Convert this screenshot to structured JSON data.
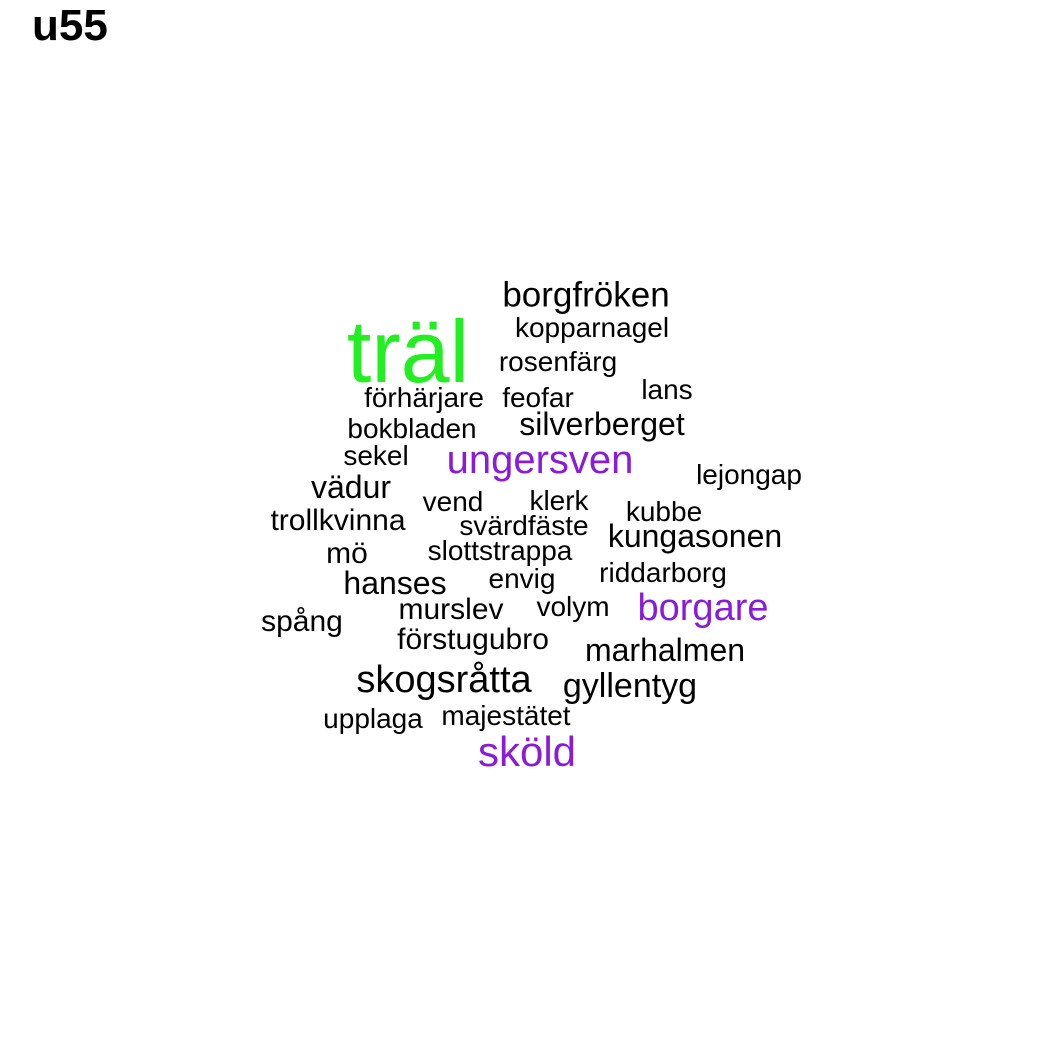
{
  "title": "u55",
  "colors": {
    "default": "#000000",
    "accent_green": "#22ee22",
    "accent_purple": "#8a1bd8"
  },
  "words": [
    {
      "text": "träl",
      "color": "accent_green"
    },
    {
      "text": "borgfröken",
      "color": "default"
    },
    {
      "text": "kopparnagel",
      "color": "default"
    },
    {
      "text": "rosenfärg",
      "color": "default"
    },
    {
      "text": "lans",
      "color": "default"
    },
    {
      "text": "förhärjare",
      "color": "default"
    },
    {
      "text": "feofar",
      "color": "default"
    },
    {
      "text": "silverberget",
      "color": "default"
    },
    {
      "text": "bokbladen",
      "color": "default"
    },
    {
      "text": "ungersven",
      "color": "accent_purple"
    },
    {
      "text": "sekel",
      "color": "default"
    },
    {
      "text": "lejongap",
      "color": "default"
    },
    {
      "text": "vädur",
      "color": "default"
    },
    {
      "text": "vend",
      "color": "default"
    },
    {
      "text": "klerk",
      "color": "default"
    },
    {
      "text": "kubbe",
      "color": "default"
    },
    {
      "text": "trollkvinna",
      "color": "default"
    },
    {
      "text": "svärdfäste",
      "color": "default"
    },
    {
      "text": "kungasonen",
      "color": "default"
    },
    {
      "text": "mö",
      "color": "default"
    },
    {
      "text": "slottstrappa",
      "color": "default"
    },
    {
      "text": "riddarborg",
      "color": "default"
    },
    {
      "text": "hanses",
      "color": "default"
    },
    {
      "text": "envig",
      "color": "default"
    },
    {
      "text": "borgare",
      "color": "accent_purple"
    },
    {
      "text": "murslev",
      "color": "default"
    },
    {
      "text": "volym",
      "color": "default"
    },
    {
      "text": "spång",
      "color": "default"
    },
    {
      "text": "förstugubro",
      "color": "default"
    },
    {
      "text": "marhalmen",
      "color": "default"
    },
    {
      "text": "skogsråtta",
      "color": "default"
    },
    {
      "text": "gyllentyg",
      "color": "default"
    },
    {
      "text": "upplaga",
      "color": "default"
    },
    {
      "text": "majestätet",
      "color": "default"
    },
    {
      "text": "sköld",
      "color": "accent_purple"
    }
  ]
}
